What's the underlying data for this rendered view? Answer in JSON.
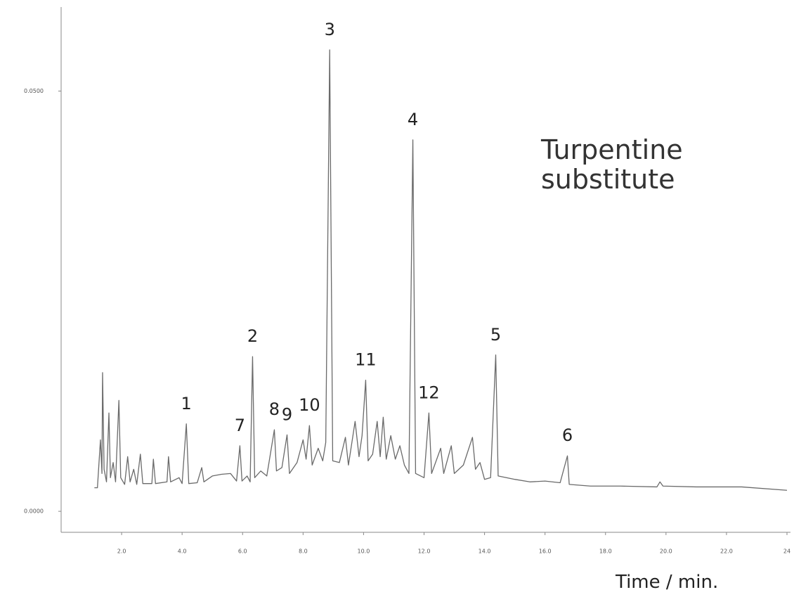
{
  "chart_data": {
    "type": "line",
    "title": "Turpentine substitute",
    "x_label": "Time / min.",
    "xlim": [
      0,
      24
    ],
    "ylim": [
      -0.0025,
      0.06
    ],
    "xticks": [
      {
        "value": 2,
        "label": "2.0"
      },
      {
        "value": 4,
        "label": "4.0"
      },
      {
        "value": 6,
        "label": "6.0"
      },
      {
        "value": 8,
        "label": "8.0"
      },
      {
        "value": 10,
        "label": "10.0"
      },
      {
        "value": 12,
        "label": "12.0"
      },
      {
        "value": 14,
        "label": "14.0"
      },
      {
        "value": 16,
        "label": "16.0"
      },
      {
        "value": 18,
        "label": "18.0"
      },
      {
        "value": 20,
        "label": "20.0"
      },
      {
        "value": 22,
        "label": "22.0"
      },
      24
    ],
    "yticks": [
      {
        "value": 0,
        "label": "0.0000"
      },
      {
        "value": 0.05,
        "label": "0.0500"
      }
    ],
    "color": "#6a6a6a",
    "x": [
      1.1,
      1.2,
      1.3,
      1.35,
      1.37,
      1.42,
      1.5,
      1.58,
      1.63,
      1.72,
      1.8,
      1.91,
      1.97,
      2.1,
      2.2,
      2.28,
      2.4,
      2.5,
      2.62,
      2.7,
      3.0,
      3.05,
      3.12,
      3.5,
      3.55,
      3.62,
      3.9,
      4.0,
      4.14,
      4.22,
      4.5,
      4.65,
      4.72,
      5.0,
      5.3,
      5.6,
      5.8,
      5.91,
      5.98,
      6.15,
      6.25,
      6.33,
      6.4,
      6.6,
      6.8,
      7.05,
      7.12,
      7.3,
      7.47,
      7.55,
      7.8,
      8.0,
      8.1,
      8.21,
      8.3,
      8.5,
      8.65,
      8.75,
      8.88,
      8.98,
      9.2,
      9.4,
      9.5,
      9.72,
      9.85,
      9.95,
      10.07,
      10.15,
      10.3,
      10.45,
      10.55,
      10.65,
      10.75,
      10.9,
      11.05,
      11.2,
      11.35,
      11.5,
      11.63,
      11.72,
      12.0,
      12.16,
      12.25,
      12.55,
      12.65,
      12.9,
      13.0,
      13.3,
      13.6,
      13.7,
      13.85,
      14.0,
      14.2,
      14.37,
      14.45,
      15.0,
      15.5,
      16.0,
      16.5,
      16.74,
      16.8,
      17.5,
      18.5,
      19.7,
      19.8,
      19.9,
      21.0,
      22.5,
      24.0
    ],
    "values": [
      0.0028,
      0.0028,
      0.0085,
      0.0045,
      0.0165,
      0.005,
      0.0035,
      0.0117,
      0.004,
      0.0058,
      0.0035,
      0.0132,
      0.004,
      0.0032,
      0.0065,
      0.0035,
      0.005,
      0.0032,
      0.0068,
      0.0033,
      0.0033,
      0.0062,
      0.0033,
      0.0035,
      0.0065,
      0.0035,
      0.004,
      0.0033,
      0.0104,
      0.0033,
      0.0034,
      0.0052,
      0.0035,
      0.0042,
      0.0044,
      0.0045,
      0.0036,
      0.0078,
      0.0036,
      0.0042,
      0.0035,
      0.0184,
      0.004,
      0.0048,
      0.0042,
      0.0097,
      0.0048,
      0.0052,
      0.0091,
      0.0045,
      0.0058,
      0.0085,
      0.0062,
      0.0102,
      0.0055,
      0.0075,
      0.006,
      0.0082,
      0.0549,
      0.006,
      0.0058,
      0.0088,
      0.0055,
      0.0107,
      0.0065,
      0.009,
      0.0156,
      0.006,
      0.0068,
      0.0107,
      0.0065,
      0.0112,
      0.0062,
      0.009,
      0.0062,
      0.0078,
      0.0055,
      0.0045,
      0.0442,
      0.0045,
      0.004,
      0.0117,
      0.0045,
      0.0075,
      0.0045,
      0.0078,
      0.0045,
      0.0055,
      0.0088,
      0.005,
      0.0058,
      0.0038,
      0.004,
      0.0186,
      0.0042,
      0.0038,
      0.0035,
      0.0036,
      0.0034,
      0.0066,
      0.0032,
      0.003,
      0.003,
      0.0029,
      0.0035,
      0.003,
      0.0029,
      0.0029,
      0.0025
    ],
    "annotations": [
      {
        "text": "1",
        "x": 4.14,
        "y": 0.0104
      },
      {
        "text": "2",
        "x": 6.33,
        "y": 0.0184
      },
      {
        "text": "3",
        "x": 8.88,
        "y": 0.0549
      },
      {
        "text": "4",
        "x": 11.63,
        "y": 0.0442
      },
      {
        "text": "5",
        "x": 14.37,
        "y": 0.0186
      },
      {
        "text": "6",
        "x": 16.74,
        "y": 0.0066
      },
      {
        "text": "7",
        "x": 5.91,
        "y": 0.0078
      },
      {
        "text": "8",
        "x": 7.05,
        "y": 0.0097
      },
      {
        "text": "9",
        "x": 7.47,
        "y": 0.0091
      },
      {
        "text": "10",
        "x": 8.21,
        "y": 0.0102
      },
      {
        "text": "11",
        "x": 10.07,
        "y": 0.0156
      },
      {
        "text": "12",
        "x": 12.16,
        "y": 0.0117
      }
    ]
  }
}
